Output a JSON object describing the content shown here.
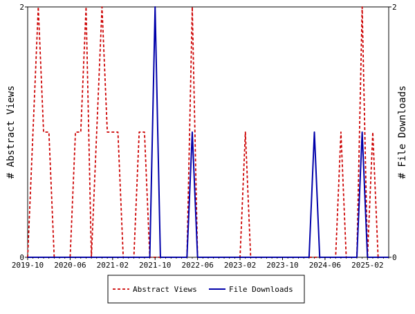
{
  "chart_data": {
    "type": "line",
    "x_ticks": [
      "2019-10",
      "2020-06",
      "2021-02",
      "2021-10",
      "2022-06",
      "2023-02",
      "2023-10",
      "2024-06",
      "2025-02"
    ],
    "x_range": [
      "2019-10",
      "2025-06"
    ],
    "ylim": [
      0,
      2
    ],
    "left_y_ticks": [
      "0",
      "2"
    ],
    "right_y_ticks": [
      "0",
      "2"
    ],
    "ylabel_left": "# Abstract Views",
    "ylabel_right": "# File Downloads",
    "legend_position": "bottom",
    "grid": false,
    "series": [
      {
        "name": "Abstract Views",
        "color": "#cc0000",
        "style": "dashed",
        "values": [
          [
            "2019-10",
            0
          ],
          [
            "2019-11",
            1
          ],
          [
            "2019-12",
            2
          ],
          [
            "2020-01",
            1
          ],
          [
            "2020-02",
            1
          ],
          [
            "2020-03",
            0
          ],
          [
            "2020-04",
            0
          ],
          [
            "2020-05",
            0
          ],
          [
            "2020-06",
            0
          ],
          [
            "2020-07",
            1
          ],
          [
            "2020-08",
            1
          ],
          [
            "2020-09",
            2
          ],
          [
            "2020-10",
            0
          ],
          [
            "2020-11",
            1
          ],
          [
            "2020-12",
            2
          ],
          [
            "2021-01",
            1
          ],
          [
            "2021-02",
            1
          ],
          [
            "2021-03",
            1
          ],
          [
            "2021-04",
            0
          ],
          [
            "2021-05",
            0
          ],
          [
            "2021-06",
            0
          ],
          [
            "2021-07",
            1
          ],
          [
            "2021-08",
            1
          ],
          [
            "2021-09",
            0
          ],
          [
            "2021-10",
            0
          ],
          [
            "2021-11",
            0
          ],
          [
            "2021-12",
            0
          ],
          [
            "2022-01",
            0
          ],
          [
            "2022-02",
            0
          ],
          [
            "2022-03",
            0
          ],
          [
            "2022-04",
            0
          ],
          [
            "2022-05",
            2
          ],
          [
            "2022-06",
            0
          ],
          [
            "2022-07",
            0
          ],
          [
            "2022-08",
            0
          ],
          [
            "2022-09",
            0
          ],
          [
            "2022-10",
            0
          ],
          [
            "2022-11",
            0
          ],
          [
            "2022-12",
            0
          ],
          [
            "2023-01",
            0
          ],
          [
            "2023-02",
            0
          ],
          [
            "2023-03",
            1
          ],
          [
            "2023-04",
            0
          ],
          [
            "2023-05",
            0
          ],
          [
            "2023-06",
            0
          ],
          [
            "2023-07",
            0
          ],
          [
            "2023-08",
            0
          ],
          [
            "2023-09",
            0
          ],
          [
            "2023-10",
            0
          ],
          [
            "2023-11",
            0
          ],
          [
            "2023-12",
            0
          ],
          [
            "2024-01",
            0
          ],
          [
            "2024-02",
            0
          ],
          [
            "2024-03",
            0
          ],
          [
            "2024-04",
            0
          ],
          [
            "2024-05",
            0
          ],
          [
            "2024-06",
            0
          ],
          [
            "2024-07",
            0
          ],
          [
            "2024-08",
            0
          ],
          [
            "2024-09",
            1
          ],
          [
            "2024-10",
            0
          ],
          [
            "2024-11",
            0
          ],
          [
            "2024-12",
            0
          ],
          [
            "2025-01",
            2
          ],
          [
            "2025-02",
            0
          ],
          [
            "2025-03",
            1
          ],
          [
            "2025-04",
            0
          ],
          [
            "2025-05",
            0
          ],
          [
            "2025-06",
            0
          ]
        ]
      },
      {
        "name": "File Downloads",
        "color": "#0000aa",
        "style": "solid",
        "values": [
          [
            "2019-10",
            0
          ],
          [
            "2021-09",
            0
          ],
          [
            "2021-10",
            2
          ],
          [
            "2021-11",
            0
          ],
          [
            "2022-04",
            0
          ],
          [
            "2022-05",
            1
          ],
          [
            "2022-06",
            0
          ],
          [
            "2024-03",
            0
          ],
          [
            "2024-04",
            1
          ],
          [
            "2024-05",
            0
          ],
          [
            "2024-12",
            0
          ],
          [
            "2025-01",
            1
          ],
          [
            "2025-02",
            0
          ],
          [
            "2025-06",
            0
          ]
        ]
      }
    ]
  }
}
